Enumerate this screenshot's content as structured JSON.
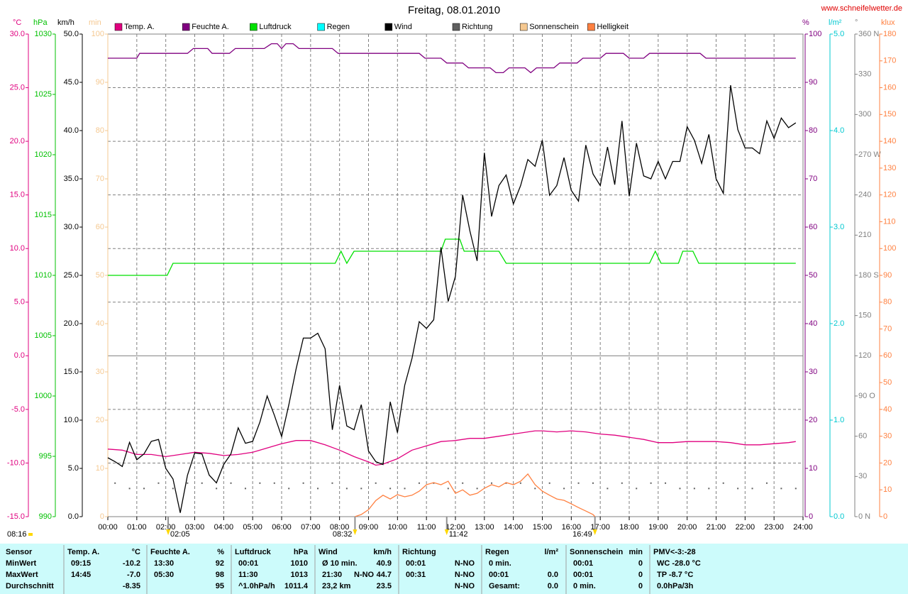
{
  "chart_data": {
    "type": "line",
    "title": "Freitag, 08.01.2010",
    "source": "www.schneifelwetter.de",
    "grid": true,
    "xlim": [
      0,
      24
    ],
    "xticks": [
      {
        "value": 0,
        "label": "00:00"
      },
      {
        "value": 1,
        "label": "01:00"
      },
      {
        "value": 2,
        "label": "02:00"
      },
      {
        "value": 3,
        "label": "03:00"
      },
      {
        "value": 4,
        "label": "04:00"
      },
      {
        "value": 5,
        "label": "05:00"
      },
      {
        "value": 6,
        "label": "06:00"
      },
      {
        "value": 7,
        "label": "07:00"
      },
      {
        "value": 8,
        "label": "08:00"
      },
      {
        "value": 9,
        "label": "09:00"
      },
      {
        "value": 10,
        "label": "10:00"
      },
      {
        "value": 11,
        "label": "11:00"
      },
      {
        "value": 12,
        "label": "12:00"
      },
      {
        "value": 13,
        "label": "13:00"
      },
      {
        "value": 14,
        "label": "14:00"
      },
      {
        "value": 15,
        "label": "15:00"
      },
      {
        "value": 16,
        "label": "16:00"
      },
      {
        "value": 17,
        "label": "17:00"
      },
      {
        "value": 18,
        "label": "18:00"
      },
      {
        "value": 19,
        "label": "19:00"
      },
      {
        "value": 20,
        "label": "20:00"
      },
      {
        "value": 21,
        "label": "21:00"
      },
      {
        "value": 22,
        "label": "22:00"
      },
      {
        "value": 23,
        "label": "23:00"
      },
      {
        "value": 24,
        "label": "24:00"
      }
    ],
    "axes": [
      {
        "title": "°C",
        "color": "#e0007f",
        "ylim": [
          -15,
          30
        ],
        "yticks": [
          {
            "value": -15,
            "label": "-15.0"
          },
          {
            "value": -10,
            "label": "-10.0"
          },
          {
            "value": -5,
            "label": "-5.0"
          },
          {
            "value": 0,
            "label": "0.0"
          },
          {
            "value": 5,
            "label": "5.0"
          },
          {
            "value": 10,
            "label": "10.0"
          },
          {
            "value": 15,
            "label": "15.0"
          },
          {
            "value": 20,
            "label": "20.0"
          },
          {
            "value": 25,
            "label": "25.0"
          },
          {
            "value": 30,
            "label": "30.0"
          }
        ]
      },
      {
        "title": "hPa",
        "color": "#00c000",
        "ylim": [
          990,
          1030
        ],
        "yticks": [
          990,
          995,
          1000,
          1005,
          1010,
          1015,
          1020,
          1025,
          1030
        ]
      },
      {
        "title": "km/h",
        "color": "#000000",
        "ylim": [
          0,
          50
        ],
        "yticks": [
          {
            "value": 0,
            "label": "0.0"
          },
          {
            "value": 5,
            "label": "5.0"
          },
          {
            "value": 10,
            "label": "10.0"
          },
          {
            "value": 15,
            "label": "15.0"
          },
          {
            "value": 20,
            "label": "20.0"
          },
          {
            "value": 25,
            "label": "25.0"
          },
          {
            "value": 30,
            "label": "30.0"
          },
          {
            "value": 35,
            "label": "35.0"
          },
          {
            "value": 40,
            "label": "40.0"
          },
          {
            "value": 45,
            "label": "45.0"
          },
          {
            "value": 50,
            "label": "50.0"
          }
        ]
      },
      {
        "title": "min",
        "color": "#f5c890",
        "ylim": [
          0,
          100
        ],
        "yticks": [
          0,
          10,
          20,
          30,
          40,
          50,
          60,
          70,
          80,
          90,
          100
        ]
      },
      {
        "title": "%",
        "color": "#800080",
        "ylim": [
          0,
          100
        ],
        "yticks": [
          0,
          10,
          20,
          30,
          40,
          50,
          60,
          70,
          80,
          90,
          100
        ]
      },
      {
        "title": "l/m²",
        "color": "#00c8d0",
        "ylim": [
          0,
          5
        ],
        "yticks": [
          {
            "value": 0,
            "label": "0.0"
          },
          {
            "value": 1,
            "label": "1.0"
          },
          {
            "value": 2,
            "label": "2.0"
          },
          {
            "value": 3,
            "label": "3.0"
          },
          {
            "value": 4,
            "label": "4.0"
          },
          {
            "value": 5,
            "label": "5.0"
          }
        ]
      },
      {
        "title": "°",
        "color": "#808080",
        "ylim": [
          0,
          360
        ],
        "yticks": [
          {
            "value": 0,
            "label": "0   N"
          },
          30,
          60,
          {
            "value": 90,
            "label": "90  O"
          },
          120,
          150,
          {
            "value": 180,
            "label": "180 S"
          },
          210,
          240,
          {
            "value": 270,
            "label": "270 W"
          },
          300,
          330,
          {
            "value": 360,
            "label": "360 N"
          }
        ]
      },
      {
        "title": "klux",
        "color": "#ff8040",
        "ylim": [
          0,
          180
        ],
        "yticks": [
          0,
          10,
          20,
          30,
          40,
          50,
          60,
          70,
          80,
          90,
          100,
          110,
          120,
          130,
          140,
          150,
          160,
          170,
          180
        ]
      }
    ],
    "series": [
      {
        "name": "Temp. A.",
        "color": "#e0007f",
        "axis": 0,
        "x": [
          0,
          0.5,
          1,
          1.5,
          2,
          2.5,
          3,
          3.5,
          4,
          4.5,
          5,
          5.5,
          6,
          6.5,
          7,
          7.5,
          8,
          8.5,
          9,
          9.25,
          9.5,
          10,
          10.5,
          11,
          11.5,
          12,
          12.5,
          13,
          13.5,
          14,
          14.5,
          14.75,
          15,
          15.5,
          16,
          16.5,
          17,
          17.5,
          18,
          18.5,
          19,
          19.5,
          20,
          20.5,
          21,
          21.5,
          22,
          22.5,
          23,
          23.5,
          23.75
        ],
        "values": [
          -8.7,
          -8.8,
          -9.2,
          -9.2,
          -9.4,
          -9.2,
          -9.0,
          -9.1,
          -9.3,
          -9.2,
          -9.0,
          -8.6,
          -8.2,
          -7.9,
          -7.9,
          -8.3,
          -8.8,
          -9.4,
          -9.9,
          -10.2,
          -10.1,
          -9.6,
          -8.8,
          -8.4,
          -8.0,
          -7.9,
          -7.7,
          -7.7,
          -7.5,
          -7.3,
          -7.1,
          -7.0,
          -7.0,
          -7.1,
          -7.0,
          -7.1,
          -7.3,
          -7.4,
          -7.6,
          -7.8,
          -8.1,
          -8.1,
          -8.0,
          -8.0,
          -8.0,
          -8.1,
          -8.3,
          -8.3,
          -8.2,
          -8.1,
          -8.0
        ]
      },
      {
        "name": "Feuchte A.",
        "color": "#800080",
        "axis": 4,
        "x": [
          0,
          1,
          1.1,
          2.75,
          2.95,
          3.45,
          3.6,
          4.2,
          4.4,
          5.4,
          5.65,
          5.85,
          6.0,
          6.15,
          6.4,
          6.6,
          7.75,
          7.95,
          10.75,
          10.95,
          11.5,
          11.7,
          12.25,
          12.45,
          13.2,
          13.4,
          13.65,
          13.85,
          14.4,
          14.6,
          14.8,
          15.4,
          15.6,
          16.2,
          16.4,
          17.0,
          17.2,
          17.8,
          18.0,
          18.5,
          18.7,
          20.45,
          20.65,
          23.75
        ],
        "values": [
          95,
          95,
          96,
          96,
          97,
          97,
          96,
          96,
          97,
          97,
          98,
          98,
          97,
          98,
          98,
          97,
          97,
          96,
          96,
          95,
          95,
          94,
          94,
          93,
          93,
          92,
          92,
          93,
          93,
          92,
          93,
          93,
          94,
          94,
          95,
          95,
          96,
          96,
          95,
          95,
          96,
          96,
          95,
          95
        ]
      },
      {
        "name": "Luftdruck",
        "color": "#00e000",
        "axis": 1,
        "x": [
          0,
          2.05,
          2.25,
          7.85,
          8.05,
          8.25,
          8.5,
          11.5,
          11.65,
          12.15,
          12.3,
          13.5,
          13.75,
          18.7,
          18.9,
          19.1,
          19.7,
          19.85,
          20.2,
          20.4,
          23.75
        ],
        "values": [
          1010,
          1010,
          1011,
          1011,
          1012,
          1011,
          1012,
          1012,
          1013,
          1013,
          1012,
          1012,
          1011,
          1011,
          1012,
          1011,
          1011,
          1012,
          1012,
          1011,
          1011
        ]
      },
      {
        "name": "Regen",
        "color": "#00ffff",
        "axis": 5
      },
      {
        "name": "Wind",
        "color": "#000000",
        "axis": 2,
        "x": [
          0,
          0.25,
          0.5,
          0.75,
          1,
          1.25,
          1.5,
          1.75,
          2,
          2.25,
          2.5,
          2.75,
          3,
          3.25,
          3.5,
          3.75,
          4,
          4.25,
          4.5,
          4.75,
          5,
          5.25,
          5.5,
          5.75,
          6,
          6.25,
          6.5,
          6.75,
          7,
          7.25,
          7.5,
          7.75,
          8,
          8.25,
          8.5,
          8.75,
          9,
          9.25,
          9.5,
          9.75,
          10,
          10.25,
          10.5,
          10.75,
          11,
          11.25,
          11.5,
          11.75,
          12,
          12.25,
          12.5,
          12.75,
          13,
          13.25,
          13.5,
          13.75,
          14,
          14.25,
          14.5,
          14.75,
          15,
          15.25,
          15.5,
          15.75,
          16,
          16.25,
          16.5,
          16.75,
          17,
          17.25,
          17.5,
          17.75,
          18,
          18.25,
          18.5,
          18.75,
          19,
          19.25,
          19.5,
          19.75,
          20,
          20.25,
          20.5,
          20.75,
          21,
          21.25,
          21.5,
          21.75,
          22,
          22.25,
          22.5,
          22.75,
          23,
          23.25,
          23.5,
          23.75
        ],
        "values": [
          6.1,
          5.7,
          5.2,
          7.7,
          5.9,
          6.5,
          7.8,
          8.0,
          5.0,
          3.9,
          0.4,
          4.3,
          6.6,
          6.5,
          4.3,
          3.5,
          5.4,
          6.5,
          9.2,
          7.6,
          7.8,
          9.8,
          12.5,
          10.5,
          8.3,
          11.6,
          15.3,
          18.5,
          18.5,
          19.0,
          17.4,
          9.0,
          13.6,
          9.4,
          9.0,
          11.6,
          6.8,
          5.7,
          5.4,
          11.9,
          8.7,
          13.6,
          16.4,
          20.2,
          19.5,
          20.4,
          27.9,
          22.3,
          24.9,
          33.3,
          29.6,
          26.5,
          37.7,
          31.1,
          34.3,
          35.4,
          32.4,
          34.3,
          37.0,
          36.3,
          39.0,
          33.3,
          34.3,
          37.2,
          33.8,
          32.7,
          38.5,
          35.5,
          34.3,
          38.3,
          34.4,
          41.0,
          33.2,
          38.7,
          35.3,
          35.0,
          36.8,
          35.0,
          36.8,
          36.8,
          40.4,
          39.0,
          36.6,
          39.6,
          35.0,
          33.5,
          44.7,
          40.1,
          38.2,
          38.2,
          37.6,
          41.0,
          39.2,
          41.3,
          40.3,
          40.8
        ]
      },
      {
        "name": "Richtung",
        "color": "#606060",
        "axis": 6,
        "style": "dots",
        "x": [
          0.25,
          0.75,
          1.25,
          1.75,
          2.25,
          2.75,
          3.25,
          3.75,
          4.25,
          4.75,
          5.25,
          5.75,
          6.25,
          6.75,
          7.25,
          7.75,
          8.25,
          8.75,
          9.25,
          9.75,
          10.25,
          10.75,
          11.25,
          11.75,
          12.25,
          12.75,
          13.25,
          13.75,
          14.25,
          14.75,
          15.25,
          15.75,
          16.25,
          16.75,
          17.25,
          17.75,
          18.25,
          18.75,
          19.25,
          19.75,
          20.25,
          20.75,
          21.25,
          21.75,
          22.25,
          22.75,
          23.25,
          23.75
        ],
        "values": [
          25,
          21,
          21,
          25,
          21,
          25,
          25,
          21,
          25,
          21,
          25,
          25,
          21,
          25,
          21,
          25,
          21,
          21,
          25,
          21,
          21,
          25,
          25,
          21,
          25,
          21,
          25,
          25,
          25,
          21,
          25,
          21,
          25,
          25,
          21,
          25,
          21,
          25,
          25,
          21,
          21,
          21,
          25,
          21,
          21,
          25,
          21,
          21
        ]
      },
      {
        "name": "Sonnenschein",
        "color": "#f5c890",
        "axis": 3
      },
      {
        "name": "Helligkeit",
        "color": "#ff8040",
        "axis": 7,
        "x": [
          8.53,
          8.75,
          9,
          9.25,
          9.5,
          9.75,
          10,
          10.25,
          10.5,
          10.75,
          11,
          11.25,
          11.5,
          11.75,
          12,
          12.25,
          12.5,
          12.75,
          13,
          13.25,
          13.5,
          13.75,
          14,
          14.25,
          14.5,
          14.75,
          15,
          15.25,
          15.5,
          15.75,
          16,
          16.25,
          16.5,
          16.75,
          16.82
        ],
        "values": [
          0,
          0.8,
          2.6,
          6.0,
          8.0,
          6.6,
          8.2,
          7.4,
          8.0,
          9.5,
          11.9,
          12.7,
          11.9,
          13.2,
          8.7,
          10.0,
          8.0,
          8.7,
          10.6,
          11.9,
          11.1,
          12.7,
          11.9,
          13.2,
          15.9,
          11.9,
          9.5,
          8.0,
          6.6,
          6.1,
          4.8,
          3.4,
          2.1,
          0.8,
          0
        ]
      }
    ],
    "annotations": [
      {
        "text": "08:16"
      },
      {
        "text": "02:05",
        "x": 2.083,
        "side": "right"
      },
      {
        "text": "08:32",
        "x": 8.533,
        "side": "left"
      },
      {
        "text": "11:42",
        "x": 11.7,
        "side": "right"
      },
      {
        "text": "16:49",
        "x": 16.817,
        "side": "left"
      }
    ]
  },
  "summary": {
    "rows": [
      [
        [
          "Sensor"
        ],
        [
          "Temp. A.",
          "°C"
        ],
        [
          "Feuchte A.",
          "%"
        ],
        [
          "Luftdruck",
          "hPa"
        ],
        [
          "Wind",
          "km/h"
        ],
        [
          "Richtung"
        ],
        [
          "Regen",
          "l/m²"
        ],
        [
          "Sonnenschein",
          "min"
        ],
        [
          "PMV<-3:-28"
        ]
      ],
      [
        [
          "MinWert"
        ],
        [
          "09:15",
          "-10.2"
        ],
        [
          "13:30",
          "92"
        ],
        [
          "00:01",
          "1010"
        ],
        [
          "Ø 10 min.",
          "40.9"
        ],
        [
          "00:01",
          "N-NO"
        ],
        [
          "0 min."
        ],
        [
          "00:01",
          "0"
        ],
        [
          "WC -28.0 °C"
        ]
      ],
      [
        [
          "MaxWert"
        ],
        [
          "14:45",
          "-7.0"
        ],
        [
          "05:30",
          "98"
        ],
        [
          "11:30",
          "1013"
        ],
        [
          "21:30",
          "N-NO",
          "44.7"
        ],
        [
          "00:31",
          "N-NO"
        ],
        [
          "00:01",
          "0.0"
        ],
        [
          "00:01",
          "0"
        ],
        [
          "TP -8.7 °C"
        ]
      ],
      [
        [
          "Durchschnitt"
        ],
        [
          null,
          "-8.35"
        ],
        [
          null,
          "95"
        ],
        [
          "^1.0hPa/h",
          "1011.4"
        ],
        [
          "23,2 km",
          "23.5"
        ],
        [
          null,
          "N-NO"
        ],
        [
          "Gesamt:",
          "0.0"
        ],
        [
          "0 min.",
          "0"
        ],
        [
          "0.0hPa/3h"
        ]
      ]
    ]
  }
}
